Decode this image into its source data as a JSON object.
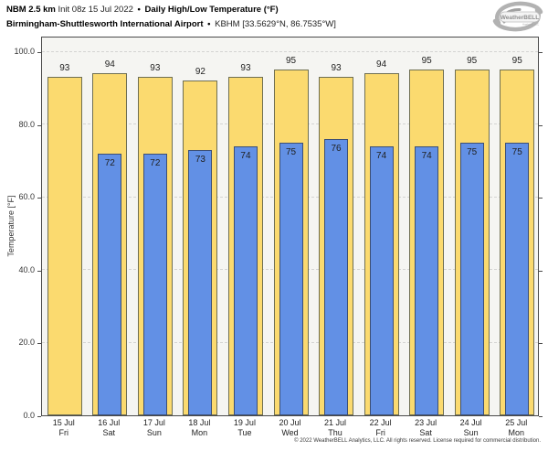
{
  "header": {
    "model": "NBM 2.5 km",
    "init": "Init 08z 15 Jul 2022",
    "separator": "•",
    "product": "Daily High/Low Temperature (°F)",
    "station_name": "Birmingham-Shuttlesworth International Airport",
    "station_id": "KBHM [33.5629°N, 86.7535°W]",
    "logo_text": "WeatherBELL",
    "logo_subtext": "Analytics, LLC"
  },
  "chart_data": {
    "type": "bar",
    "title": "Daily High/Low Temperature (°F)",
    "ylabel": "Temperature [°F]",
    "ylim": [
      0,
      104.4
    ],
    "yticks": [
      0,
      20,
      40,
      60,
      80,
      100
    ],
    "ytick_labels": [
      "0.0",
      "20.0",
      "40.0",
      "60.0",
      "80.0",
      "100.0"
    ],
    "grid": "horizontal-dashed",
    "legend_position": "none",
    "categories": [
      {
        "date": "15 Jul",
        "day": "Fri"
      },
      {
        "date": "16 Jul",
        "day": "Sat"
      },
      {
        "date": "17 Jul",
        "day": "Sun"
      },
      {
        "date": "18 Jul",
        "day": "Mon"
      },
      {
        "date": "19 Jul",
        "day": "Tue"
      },
      {
        "date": "20 Jul",
        "day": "Wed"
      },
      {
        "date": "21 Jul",
        "day": "Thu"
      },
      {
        "date": "22 Jul",
        "day": "Fri"
      },
      {
        "date": "23 Jul",
        "day": "Sat"
      },
      {
        "date": "24 Jul",
        "day": "Sun"
      },
      {
        "date": "25 Jul",
        "day": "Mon"
      }
    ],
    "series": [
      {
        "name": "High",
        "color": "#fbda6f",
        "edge_color": "#6f6f52",
        "values": [
          93,
          94,
          93,
          92,
          93,
          95,
          93,
          94,
          95,
          95,
          95
        ]
      },
      {
        "name": "Low",
        "color": "#6290e5",
        "edge_color": "#3c4f75",
        "values": [
          null,
          72,
          72,
          73,
          74,
          75,
          76,
          74,
          74,
          75,
          75
        ]
      }
    ]
  },
  "footer": {
    "copyright": "© 2022 WeatherBELL Analytics, LLC. All rights reserved. License required for commercial distribution."
  }
}
